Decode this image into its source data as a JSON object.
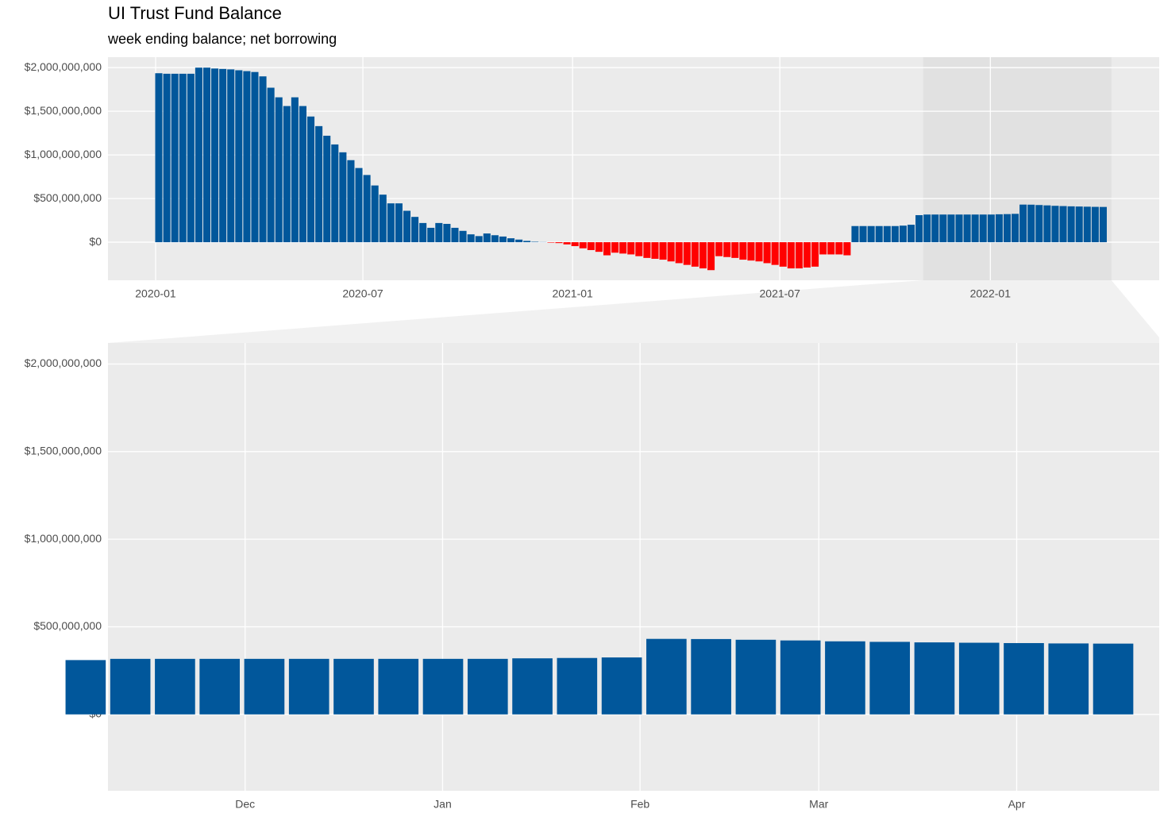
{
  "chart_data": {
    "type": "bar",
    "title": "UI Trust Fund Balance",
    "subtitle": "week ending balance; net borrowing",
    "categories": [
      null,
      null,
      null,
      null,
      null,
      null,
      null,
      null,
      null,
      null,
      null,
      null,
      null,
      null,
      null,
      null,
      null,
      null,
      null,
      null,
      null,
      null,
      null,
      null,
      null,
      null,
      null,
      null,
      null,
      null,
      null,
      null,
      null,
      null,
      null,
      null,
      null,
      null,
      null,
      null,
      null,
      null,
      null,
      null,
      null,
      null,
      null,
      null,
      null,
      null,
      null,
      null,
      null,
      null,
      null,
      null,
      null,
      null,
      null,
      null,
      null,
      null,
      null,
      null,
      null,
      null,
      null,
      null,
      null,
      null,
      null,
      null,
      null,
      null,
      null,
      null,
      null,
      null,
      null,
      null,
      null,
      null,
      null,
      null,
      null,
      null,
      null,
      null,
      null,
      null,
      null,
      null,
      null,
      null,
      null,
      null,
      null,
      null,
      null,
      null,
      null,
      null,
      null,
      null,
      null,
      null,
      null,
      null,
      null,
      null,
      null,
      null,
      null,
      null,
      null,
      null,
      null,
      null,
      null
    ],
    "values": [
      1936000000,
      1930000000,
      1930000000,
      1930000000,
      1930000000,
      2000000000,
      2000000000,
      1990000000,
      1985000000,
      1980000000,
      1970000000,
      1960000000,
      1950000000,
      1900000000,
      1770000000,
      1660000000,
      1560000000,
      1660000000,
      1560000000,
      1440000000,
      1330000000,
      1220000000,
      1120000000,
      1030000000,
      940000000,
      850000000,
      770000000,
      650000000,
      545000000,
      445000000,
      445000000,
      360000000,
      290000000,
      220000000,
      165000000,
      220000000,
      210000000,
      165000000,
      130000000,
      90000000,
      70000000,
      100000000,
      80000000,
      65000000,
      45000000,
      30000000,
      15000000,
      5000000,
      2000000,
      -5000000,
      -10000000,
      -25000000,
      -45000000,
      -70000000,
      -90000000,
      -110000000,
      -150000000,
      -120000000,
      -130000000,
      -140000000,
      -160000000,
      -180000000,
      -190000000,
      -200000000,
      -220000000,
      -240000000,
      -260000000,
      -280000000,
      -300000000,
      -320000000,
      -160000000,
      -170000000,
      -180000000,
      -200000000,
      -210000000,
      -220000000,
      -240000000,
      -260000000,
      -280000000,
      -300000000,
      -300000000,
      -290000000,
      -280000000,
      -140000000,
      -140000000,
      -140000000,
      -150000000,
      185000000,
      185000000,
      185000000,
      185000000,
      185000000,
      185000000,
      190000000,
      200000000,
      310000000,
      317000000,
      317000000,
      317000000,
      317000000,
      317000000,
      317000000,
      317000000,
      317000000,
      317000000,
      320000000,
      322000000,
      325000000,
      431000000,
      430000000,
      426000000,
      422000000,
      417000000,
      414000000,
      411000000,
      409000000,
      407000000,
      405000000,
      404000000
    ],
    "color": "#01579b",
    "negative_color": "#ff0000",
    "xlim": [
      -6.35,
      125.0
    ],
    "xticks": [
      {
        "value": -0.4,
        "label": "2020-01"
      },
      {
        "value": 25.5,
        "label": "2020-07"
      },
      {
        "value": 51.7,
        "label": "2021-01"
      },
      {
        "value": 77.6,
        "label": "2021-07"
      },
      {
        "value": 103.9,
        "label": "2022-01"
      }
    ],
    "ylim": [
      -436000000,
      2120000000
    ],
    "yticks": [
      {
        "value": 0,
        "label": "$0"
      },
      {
        "value": 500000000,
        "label": "$500,000,000"
      },
      {
        "value": 1000000000,
        "label": "$1,000,000,000"
      },
      {
        "value": 1500000000,
        "label": "$1,500,000,000"
      },
      {
        "value": 2000000000,
        "label": "$2,000,000,000"
      }
    ],
    "grid": true,
    "zoom": {
      "xlim": [
        95.5,
        119.03
      ],
      "xticks": [
        {
          "value": 98.57,
          "label": "Dec"
        },
        {
          "value": 102.99,
          "label": "Jan"
        },
        {
          "value": 107.41,
          "label": "Feb"
        },
        {
          "value": 111.41,
          "label": "Mar"
        },
        {
          "value": 115.84,
          "label": "Apr"
        }
      ]
    }
  }
}
